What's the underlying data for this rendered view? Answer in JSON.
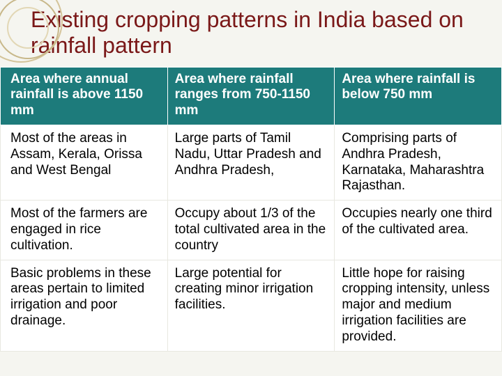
{
  "title": "Existing cropping patterns in India based on rainfall pattern",
  "table": {
    "headers": [
      "Area where annual rainfall is above 1150 mm",
      "Area where rainfall ranges from 750-1150 mm",
      "Area where rainfall is below 750 mm"
    ],
    "rows": [
      [
        "Most of the areas in Assam, Kerala, Orissa and West Bengal",
        "Large parts of Tamil Nadu, Uttar Pradesh and Andhra Pradesh,",
        "Comprising parts of Andhra Pradesh, Karnataka, Maharashtra Rajasthan."
      ],
      [
        "Most of the farmers are engaged in rice cultivation.",
        "Occupy about 1/3 of the total cultivated area in the country",
        "Occupies nearly one third of the cultivated area."
      ],
      [
        "Basic problems in these areas pertain to limited irrigation and poor drainage.",
        "Large potential for creating minor irrigation facilities.",
        "Little hope for raising cropping intensity, unless major and medium irrigation facilities are provided."
      ]
    ],
    "header_bg": "#1d7b7b",
    "header_fg": "#ffffff",
    "cell_bg": "#ffffff",
    "cell_fg": "#000000",
    "title_color": "#7a1818",
    "page_bg": "#f5f5f0"
  }
}
